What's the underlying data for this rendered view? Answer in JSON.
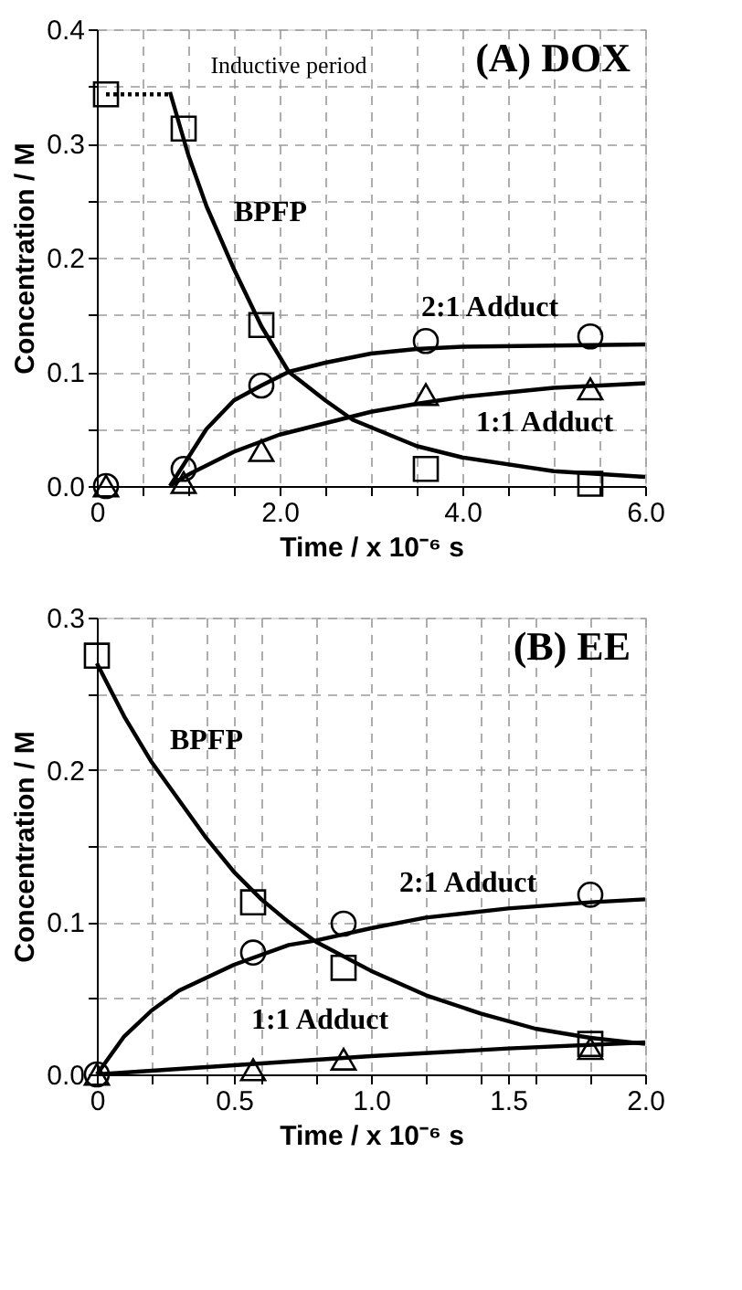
{
  "chart_data": [
    {
      "type": "line",
      "title": "(A) DOX",
      "xlabel": "Time / x 10⁻⁶ s",
      "ylabel": "Concentration / M",
      "xlim": [
        0,
        6
      ],
      "ylim": [
        0,
        0.4
      ],
      "xticks": [
        0,
        {
          "value": 0.5,
          "label": null
        },
        {
          "value": 1,
          "label": null
        },
        {
          "value": 1.5,
          "label": null
        },
        {
          "value": 2,
          "label": "2.0"
        },
        {
          "value": 2.5,
          "label": null
        },
        {
          "value": 3,
          "label": null
        },
        {
          "value": 3.5,
          "label": null
        },
        {
          "value": 4,
          "label": "4.0"
        },
        {
          "value": 4.5,
          "label": null
        },
        {
          "value": 5,
          "label": null
        },
        {
          "value": 5.5,
          "label": null
        },
        {
          "value": 6,
          "label": "6.0"
        }
      ],
      "yticks": [
        {
          "value": 0,
          "label": "0.0"
        },
        {
          "value": 0.05,
          "label": null
        },
        {
          "value": 0.1,
          "label": "0.1"
        },
        {
          "value": 0.15,
          "label": null
        },
        {
          "value": 0.2,
          "label": "0.2"
        },
        {
          "value": 0.25,
          "label": null
        },
        {
          "value": 0.3,
          "label": "0.3"
        },
        {
          "value": 0.35,
          "label": null
        },
        {
          "value": 0.4,
          "label": "0.4"
        }
      ],
      "grid": true,
      "series": [
        {
          "color": "#000000",
          "marker": "none",
          "line_style": "dotted",
          "x": [
            0.1,
            0.8
          ],
          "values": [
            0.343,
            0.343
          ]
        },
        {
          "color": "#000000",
          "marker": "none",
          "line_style": "solid",
          "x": [
            0.8,
            1.0,
            1.2,
            1.5,
            1.8,
            2.1,
            2.5,
            2.8,
            3.5,
            4.0,
            5.0,
            6.0
          ],
          "values": [
            0.345,
            0.29,
            0.245,
            0.19,
            0.14,
            0.1,
            0.075,
            0.058,
            0.035,
            0.025,
            0.013,
            0.008
          ]
        },
        {
          "color": "#000000",
          "marker": "none",
          "line_style": "solid",
          "x": [
            0.8,
            1.0,
            1.2,
            1.5,
            1.8,
            2.1,
            2.5,
            3.0,
            3.5,
            4.0,
            5.0,
            6.0
          ],
          "values": [
            0,
            0.025,
            0.05,
            0.075,
            0.088,
            0.1,
            0.108,
            0.116,
            0.12,
            0.122,
            0.123,
            0.124
          ]
        },
        {
          "color": "#000000",
          "marker": "none",
          "line_style": "solid",
          "x": [
            0.8,
            1.0,
            1.5,
            2.0,
            2.5,
            3.0,
            3.5,
            4.0,
            5.0,
            6.0
          ],
          "values": [
            0,
            0.01,
            0.03,
            0.045,
            0.055,
            0.065,
            0.072,
            0.078,
            0.086,
            0.09
          ]
        },
        {
          "type": "scatter",
          "color": "#000000",
          "marker": "square",
          "x": [
            0.1,
            0.95,
            1.8,
            3.6,
            5.4
          ],
          "values": [
            0.343,
            0.313,
            0.141,
            0.015,
            0.002
          ]
        },
        {
          "type": "scatter",
          "color": "#000000",
          "marker": "circle",
          "x": [
            0.1,
            0.95,
            1.8,
            3.6,
            5.4
          ],
          "values": [
            0,
            0.015,
            0.088,
            0.127,
            0.131
          ]
        },
        {
          "type": "scatter",
          "color": "#000000",
          "marker": "triangle",
          "x": [
            0.1,
            0.95,
            1.8,
            3.6,
            5.4
          ],
          "values": [
            0,
            0.003,
            0.031,
            0.08,
            0.085
          ]
        }
      ],
      "annotations": [
        "Inductive period",
        "BPFP",
        "2:1 Adduct",
        "1:1 Adduct"
      ]
    },
    {
      "type": "line",
      "title": "(B) EE",
      "xlabel": "Time / x 10⁻⁶ s",
      "ylabel": "Concentration / M",
      "xlim": [
        0,
        2
      ],
      "ylim": [
        0,
        0.3
      ],
      "xticks": [
        0,
        {
          "value": 0.2,
          "label": null
        },
        {
          "value": 0.4,
          "label": null
        },
        0.5,
        {
          "value": 0.6,
          "label": null
        },
        {
          "value": 0.8,
          "label": null
        },
        {
          "value": 1,
          "label": "1.0"
        },
        {
          "value": 1.2,
          "label": null
        },
        {
          "value": 1.4,
          "label": null
        },
        1.5,
        {
          "value": 1.6,
          "label": null
        },
        {
          "value": 1.8,
          "label": null
        },
        {
          "value": 2,
          "label": "2.0"
        }
      ],
      "yticks": [
        {
          "value": 0,
          "label": "0.0"
        },
        {
          "value": 0.05,
          "label": null
        },
        {
          "value": 0.1,
          "label": "0.1"
        },
        {
          "value": 0.15,
          "label": null
        },
        {
          "value": 0.2,
          "label": "0.2"
        },
        {
          "value": 0.25,
          "label": null
        },
        {
          "value": 0.3,
          "label": "0.3"
        }
      ],
      "grid": true,
      "series": [
        {
          "color": "#000000",
          "marker": "none",
          "line_style": "solid",
          "x": [
            0,
            0.1,
            0.2,
            0.3,
            0.4,
            0.5,
            0.6,
            0.7,
            0.8,
            1.0,
            1.2,
            1.4,
            1.6,
            1.8,
            2.0
          ],
          "values": [
            0.27,
            0.235,
            0.205,
            0.18,
            0.155,
            0.133,
            0.115,
            0.1,
            0.087,
            0.068,
            0.052,
            0.04,
            0.03,
            0.024,
            0.02
          ]
        },
        {
          "color": "#000000",
          "marker": "none",
          "line_style": "solid",
          "x": [
            0,
            0.1,
            0.2,
            0.3,
            0.5,
            0.7,
            0.8,
            1.0,
            1.2,
            1.5,
            1.8,
            2.0
          ],
          "values": [
            0,
            0.025,
            0.042,
            0.055,
            0.072,
            0.085,
            0.088,
            0.096,
            0.103,
            0.109,
            0.113,
            0.115
          ]
        },
        {
          "color": "#000000",
          "marker": "none",
          "line_style": "solid",
          "x": [
            0,
            0.5,
            1.0,
            1.5,
            2.0
          ],
          "values": [
            0,
            0.006,
            0.012,
            0.017,
            0.021
          ]
        },
        {
          "type": "scatter",
          "color": "#000000",
          "marker": "square",
          "x": [
            0,
            0.57,
            0.9,
            1.8
          ],
          "values": [
            0.275,
            0.113,
            0.07,
            0.02
          ]
        },
        {
          "type": "scatter",
          "color": "#000000",
          "marker": "circle",
          "x": [
            0,
            0.57,
            0.9,
            1.8
          ],
          "values": [
            0,
            0.08,
            0.099,
            0.118
          ]
        },
        {
          "type": "scatter",
          "color": "#000000",
          "marker": "triangle",
          "x": [
            0,
            0.57,
            0.9,
            1.8
          ],
          "values": [
            0,
            0.003,
            0.01,
            0.017
          ]
        }
      ],
      "annotations": [
        "BPFP",
        "2:1 Adduct",
        "1:1 Adduct"
      ]
    }
  ]
}
